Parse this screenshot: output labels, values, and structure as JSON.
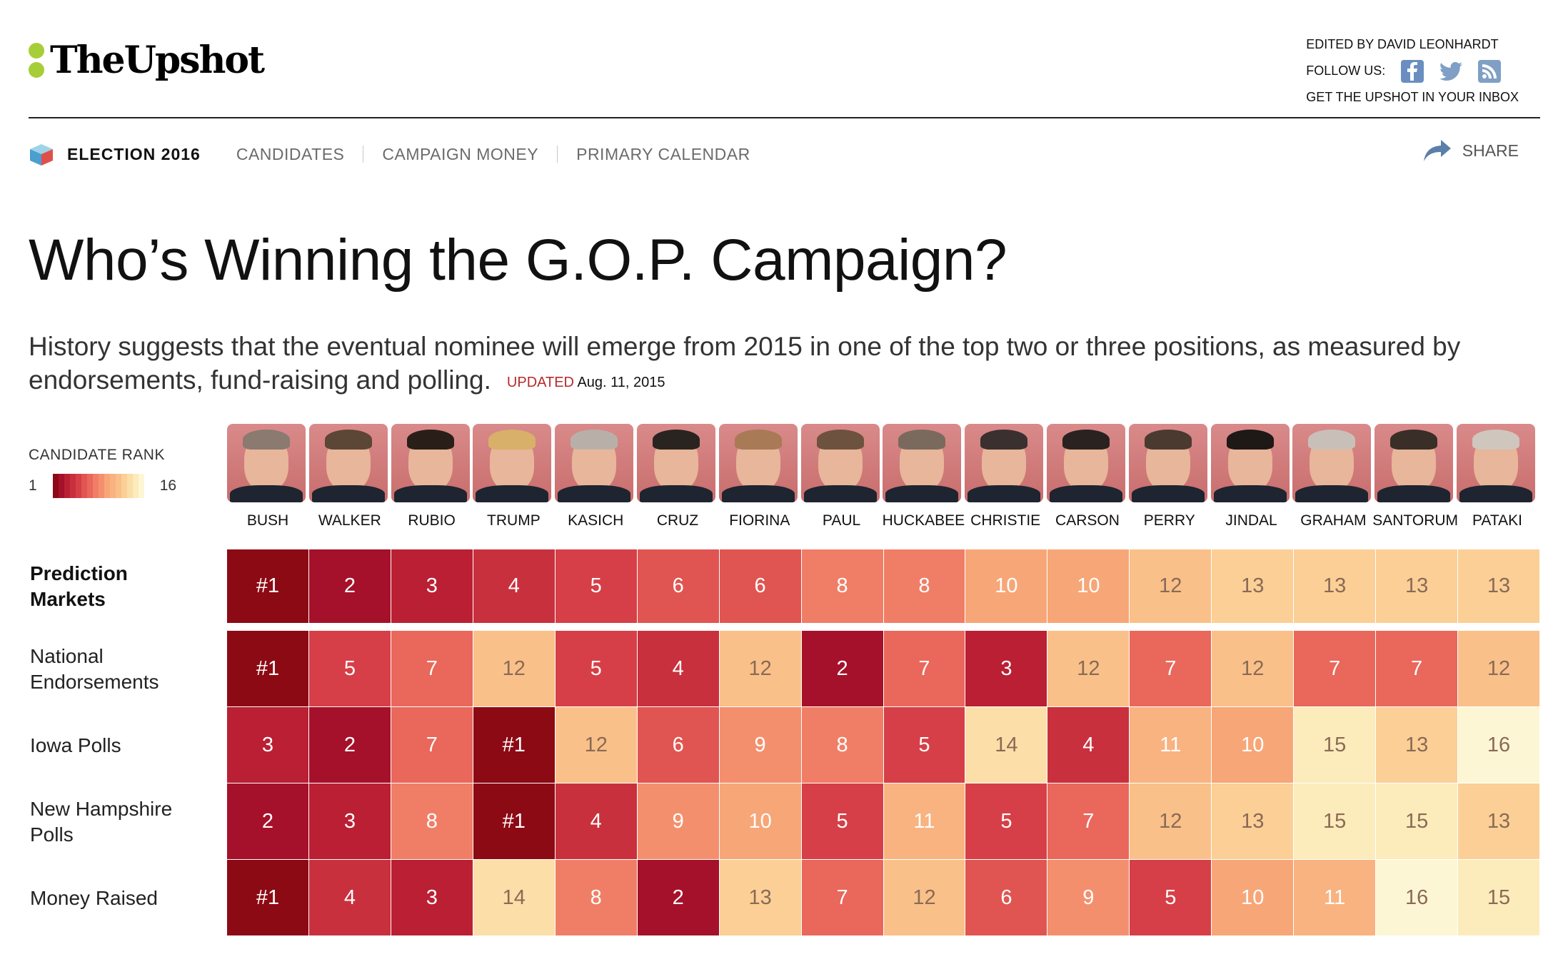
{
  "masthead": {
    "logo_text": "TheUpshot",
    "edited_by": "EDITED BY DAVID LEONHARDT",
    "follow_label": "FOLLOW US:",
    "social_icons": [
      "facebook-icon",
      "twitter-icon",
      "rss-icon"
    ],
    "inbox_link": "GET THE UPSHOT IN YOUR INBOX"
  },
  "section_nav": {
    "section_label": "ELECTION 2016",
    "items": [
      "CANDIDATES",
      "CAMPAIGN MONEY",
      "PRIMARY CALENDAR"
    ],
    "share_label": "SHARE"
  },
  "article": {
    "headline": "Who’s Winning the G.O.P. Campaign?",
    "dek": "History suggests that the eventual nominee will emerge from 2015 in one of the top two or three positions, as measured by endorsements, fund-raising and polling.",
    "updated_label": "UPDATED",
    "updated_date": "Aug. 11, 2015"
  },
  "legend": {
    "title": "CANDIDATE RANK",
    "min": "1",
    "max": "16"
  },
  "colors": {
    "accent_green": "#a6ce39",
    "updated_red": "#b52b2b",
    "rank_scale": [
      "#8c0a14",
      "#a5112a",
      "#ba1f33",
      "#c9303d",
      "#d63f47",
      "#e05551",
      "#e9675b",
      "#f07e66",
      "#f48f6e",
      "#f7a678",
      "#f8b381",
      "#f9c089",
      "#fbcf96",
      "#fbdea8",
      "#fcebbb",
      "#fdf6d4"
    ]
  },
  "candidates": [
    {
      "name": "BUSH",
      "hair": "#8a7a70"
    },
    {
      "name": "WALKER",
      "hair": "#5c4636"
    },
    {
      "name": "RUBIO",
      "hair": "#2a1e18"
    },
    {
      "name": "TRUMP",
      "hair": "#d8b06a"
    },
    {
      "name": "KASICH",
      "hair": "#b8b0a8"
    },
    {
      "name": "CRUZ",
      "hair": "#2a2420"
    },
    {
      "name": "FIORINA",
      "hair": "#a87a56"
    },
    {
      "name": "PAUL",
      "hair": "#6e5240"
    },
    {
      "name": "HUCKABEE",
      "hair": "#7a6a5e"
    },
    {
      "name": "CHRISTIE",
      "hair": "#3a3030"
    },
    {
      "name": "CARSON",
      "hair": "#2a2220"
    },
    {
      "name": "PERRY",
      "hair": "#4a3a30"
    },
    {
      "name": "JINDAL",
      "hair": "#1e1816"
    },
    {
      "name": "GRAHAM",
      "hair": "#c8c0b8"
    },
    {
      "name": "SANTORUM",
      "hair": "#3a2e28"
    },
    {
      "name": "PATAKI",
      "hair": "#cfc6bd"
    }
  ],
  "chart_data": {
    "type": "heatmap",
    "title": "",
    "categories": [
      "BUSH",
      "WALKER",
      "RUBIO",
      "TRUMP",
      "KASICH",
      "CRUZ",
      "FIORINA",
      "PAUL",
      "HUCKABEE",
      "CHRISTIE",
      "CARSON",
      "PERRY",
      "JINDAL",
      "GRAHAM",
      "SANTORUM",
      "PATAKI"
    ],
    "series": [
      {
        "name": "Prediction Markets",
        "values": [
          1,
          2,
          3,
          4,
          5,
          6,
          6,
          8,
          8,
          10,
          10,
          12,
          13,
          13,
          13,
          13
        ]
      },
      {
        "name": "National Endorsements",
        "values": [
          1,
          5,
          7,
          12,
          5,
          4,
          12,
          2,
          7,
          3,
          12,
          7,
          12,
          7,
          7,
          12
        ]
      },
      {
        "name": "Iowa Polls",
        "values": [
          3,
          2,
          7,
          1,
          12,
          6,
          9,
          8,
          5,
          14,
          4,
          11,
          10,
          15,
          13,
          16
        ]
      },
      {
        "name": "New Hampshire Polls",
        "values": [
          2,
          3,
          8,
          1,
          4,
          9,
          10,
          5,
          11,
          5,
          7,
          12,
          13,
          15,
          15,
          13
        ]
      },
      {
        "name": "Money Raised",
        "values": [
          1,
          4,
          3,
          14,
          8,
          2,
          13,
          7,
          12,
          6,
          9,
          5,
          10,
          11,
          16,
          15
        ]
      }
    ],
    "row_labels": [
      {
        "line1": "Prediction",
        "line2": "Markets",
        "bold": true
      },
      {
        "line1": "National",
        "line2": "Endorsements",
        "bold": false
      },
      {
        "line1": "Iowa Polls",
        "line2": "",
        "bold": false
      },
      {
        "line1": "New Hampshire",
        "line2": "Polls",
        "bold": false
      },
      {
        "line1": "Money Raised",
        "line2": "",
        "bold": false
      }
    ],
    "rank_range": [
      1,
      16
    ],
    "first_place_format": "#1"
  }
}
